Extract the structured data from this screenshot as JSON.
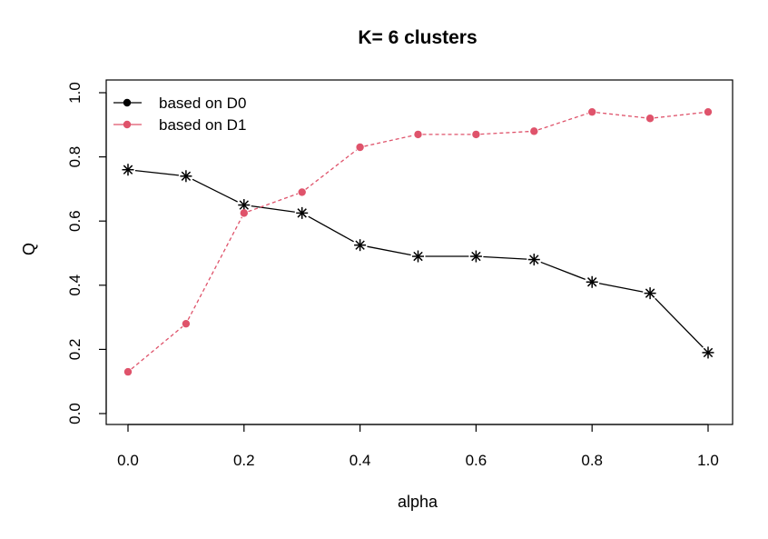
{
  "chart_data": {
    "type": "line",
    "title": "K= 6 clusters",
    "xlabel": "alpha",
    "ylabel": "Q",
    "xlim": [
      0.0,
      1.0
    ],
    "ylim": [
      0.0,
      1.0
    ],
    "x_ticks": [
      "0.0",
      "0.2",
      "0.4",
      "0.6",
      "0.8",
      "1.0"
    ],
    "y_ticks": [
      "0.0",
      "0.2",
      "0.4",
      "0.6",
      "0.8",
      "1.0"
    ],
    "x": [
      0.0,
      0.1,
      0.2,
      0.3,
      0.4,
      0.5,
      0.6,
      0.7,
      0.8,
      0.9,
      1.0
    ],
    "grid": false,
    "legend_position": "top-left",
    "series": [
      {
        "name": "based on D0",
        "color": "#000000",
        "line_style": "solid",
        "marker": "asterisk",
        "legend_marker": "dot",
        "values": [
          0.76,
          0.74,
          0.65,
          0.625,
          0.525,
          0.49,
          0.49,
          0.48,
          0.41,
          0.375,
          0.19
        ]
      },
      {
        "name": "based on D1",
        "color": "#DF536B",
        "line_style": "dashed",
        "marker": "dot",
        "legend_marker": "dot",
        "values": [
          0.13,
          0.28,
          0.625,
          0.69,
          0.83,
          0.87,
          0.87,
          0.88,
          0.94,
          0.92,
          0.94
        ]
      }
    ]
  }
}
